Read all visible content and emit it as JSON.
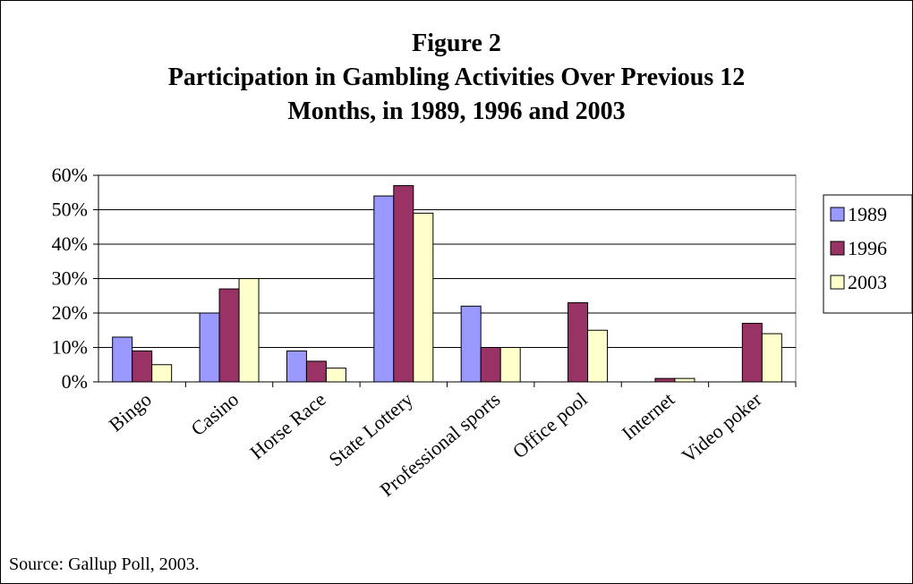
{
  "title": {
    "line1": "Figure 2",
    "line2": "Participation in Gambling Activities Over Previous 12",
    "line3": "Months, in 1989, 1996 and 2003"
  },
  "source": "Source:  Gallup Poll, 2003.",
  "chart_data": {
    "type": "bar",
    "categories": [
      "Bingo",
      "Casino",
      "Horse Race",
      "State Lottery",
      "Professional sports",
      "Office pool",
      "Internet",
      "Video poker"
    ],
    "series": [
      {
        "name": "1989",
        "color": "#9999ff",
        "values": [
          13,
          20,
          9,
          54,
          22,
          0,
          0,
          0
        ]
      },
      {
        "name": "1996",
        "color": "#993366",
        "values": [
          9,
          27,
          6,
          57,
          10,
          23,
          1,
          17
        ]
      },
      {
        "name": "2003",
        "color": "#ffffcc",
        "values": [
          5,
          30,
          4,
          49,
          10,
          15,
          1,
          14
        ]
      }
    ],
    "yticks": [
      "0%",
      "10%",
      "20%",
      "30%",
      "40%",
      "50%",
      "60%"
    ],
    "ylim": [
      0,
      60
    ],
    "grid": true,
    "legend_position": "right"
  }
}
